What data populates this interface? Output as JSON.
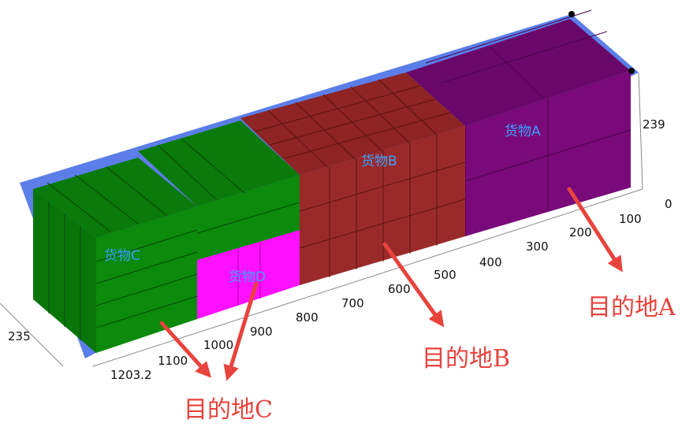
{
  "cargo_labels": {
    "a": "货物A",
    "b": "货物B",
    "c": "货物C",
    "d": "货物D"
  },
  "destinations": {
    "a": "目的地A",
    "b": "目的地B",
    "c": "目的地C"
  },
  "axis": {
    "length_ticks": [
      "100",
      "200",
      "300",
      "400",
      "500",
      "600",
      "700",
      "800",
      "900",
      "1000",
      "1100",
      "1203.2"
    ],
    "height_top": "239",
    "height_zero": "0",
    "width_label": "235"
  },
  "colors": {
    "container": "#5b7ee8",
    "cargo_a": "#7a0a7a",
    "cargo_b": "#9a2a2a",
    "cargo_c": "#0b8a0b",
    "cargo_d": "#ff10ff",
    "arrow": "#e8433c",
    "label": "#3aa0ff"
  }
}
